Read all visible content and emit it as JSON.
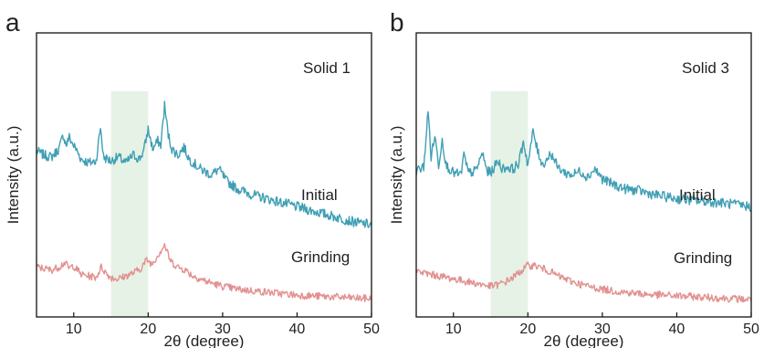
{
  "figure": {
    "colors": {
      "initial": "#3f9fb4",
      "grinding": "#e1918f",
      "highlight": "#e6f2e6",
      "frame": "#111111"
    }
  },
  "chart_data": [
    {
      "type": "line",
      "panel_label": "a",
      "annotation": "Solid 1",
      "xlabel": "2θ (degree)",
      "ylabel": "Intensity (a.u.)",
      "xlim": [
        5,
        50
      ],
      "ylim": [
        0,
        100
      ],
      "xticks": [
        10,
        20,
        30,
        40,
        50
      ],
      "tick_labels": [
        "10",
        "20",
        "30",
        "40",
        "50"
      ],
      "y_ticks_shown": false,
      "grid": false,
      "highlight_band": [
        15,
        20
      ],
      "series": [
        {
          "name": "Initial",
          "color": "#3f9fb4",
          "x": [
            5,
            6,
            7,
            8,
            8.6,
            9,
            9.4,
            9.8,
            10.3,
            11,
            12,
            13,
            13.6,
            14,
            15,
            16,
            17,
            18,
            18.8,
            19.4,
            20,
            20.6,
            21.3,
            21.7,
            22.2,
            22.7,
            23.2,
            24,
            24.8,
            25.5,
            27,
            28.5,
            29.5,
            30.5,
            32,
            34,
            36,
            38,
            40,
            42,
            44,
            46,
            48,
            50
          ],
          "y": [
            52,
            50,
            49,
            53,
            60,
            55,
            59,
            56,
            53,
            48,
            46,
            47,
            64,
            49,
            47,
            49,
            46,
            50,
            48,
            52,
            63,
            53,
            57,
            55,
            75,
            60,
            53,
            50,
            54,
            48,
            43,
            40,
            43,
            37,
            33,
            30,
            28,
            26,
            24,
            22,
            20,
            18,
            16,
            15
          ]
        },
        {
          "name": "Grinding",
          "color": "#e1918f",
          "x": [
            5,
            6,
            7,
            8,
            8.8,
            9.4,
            9.9,
            10.5,
            11,
            12,
            13,
            13.7,
            14.5,
            15,
            16,
            17,
            18,
            19,
            19.8,
            20.5,
            21.3,
            22.2,
            23,
            24,
            25,
            26,
            28,
            30,
            32,
            34,
            36,
            38,
            40,
            42,
            44,
            46,
            48,
            50
          ],
          "y": [
            28,
            27,
            26,
            28,
            31,
            27,
            29,
            26,
            23,
            22,
            21,
            28,
            23,
            21,
            20,
            22,
            24,
            27,
            33,
            30,
            36,
            43,
            32,
            28,
            26,
            22,
            18,
            15,
            13,
            12,
            11,
            10,
            9,
            8.5,
            8,
            7.5,
            7,
            6.5
          ]
        }
      ]
    },
    {
      "type": "line",
      "panel_label": "b",
      "annotation": "Solid 3",
      "xlabel": "2θ (degree)",
      "ylabel": "Intensity (a.u.)",
      "xlim": [
        5,
        50
      ],
      "ylim": [
        0,
        100
      ],
      "xticks": [
        10,
        20,
        30,
        40,
        50
      ],
      "tick_labels": [
        "10",
        "20",
        "30",
        "40",
        "50"
      ],
      "y_ticks_shown": false,
      "grid": false,
      "highlight_band": [
        15,
        20
      ],
      "series": [
        {
          "name": "Initial",
          "color": "#3f9fb4",
          "x": [
            5,
            6,
            6.6,
            7,
            7.5,
            8,
            8.5,
            9,
            10,
            11,
            11.4,
            12,
            13,
            13.9,
            14.5,
            15,
            16,
            16.6,
            17.2,
            18,
            18.8,
            19.4,
            20,
            20.7,
            21.3,
            22,
            23.1,
            24,
            25,
            26,
            27,
            28,
            29,
            30,
            31,
            33,
            35,
            37,
            40,
            43,
            46,
            48,
            50
          ],
          "y": [
            42,
            44,
            72,
            49,
            60,
            45,
            58,
            45,
            41,
            40,
            50,
            41,
            42,
            51,
            42,
            41,
            47,
            43,
            44,
            43,
            46,
            57,
            45,
            62,
            52,
            45,
            51,
            44,
            41,
            40,
            42,
            39,
            43,
            38,
            36,
            33,
            32,
            30,
            28,
            27,
            26,
            25,
            24
          ]
        },
        {
          "name": "Grinding",
          "color": "#e1918f",
          "x": [
            5,
            7,
            9,
            11,
            13,
            14,
            15,
            16,
            17,
            18,
            19,
            20,
            21,
            22,
            23,
            24,
            26,
            28,
            30,
            32,
            34,
            36,
            38,
            40,
            42,
            44,
            46,
            48,
            50
          ],
          "y": [
            25,
            23,
            21,
            19,
            17,
            16,
            15,
            16,
            18,
            21,
            25,
            29,
            29,
            27,
            25,
            22,
            18,
            15,
            13,
            11.5,
            10.5,
            9.5,
            9,
            8.5,
            8,
            7.5,
            7,
            6.5,
            6
          ]
        }
      ]
    }
  ]
}
